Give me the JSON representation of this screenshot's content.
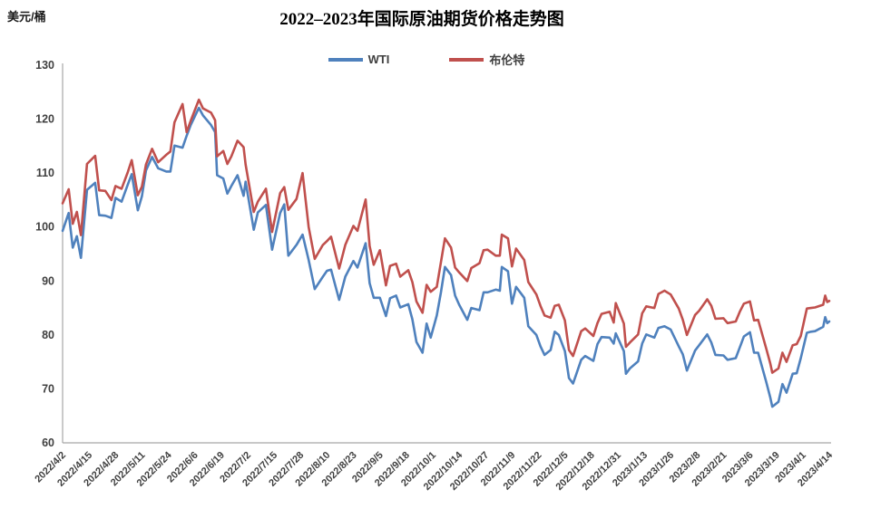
{
  "chart": {
    "title": "2022–2023年国际原油期货价格走势图",
    "unit_label": "美元/桶",
    "legend": [
      {
        "label": "WTI",
        "color": "#4F81BD"
      },
      {
        "label": "布伦特",
        "color": "#C0504D"
      }
    ],
    "axis_color": "#A6A6A6",
    "text_color": "#3F3F3F",
    "background": "#FFFFFF"
  },
  "chart_data": {
    "type": "line",
    "title": "2022–2023年国际原油期货价格走势图",
    "ylabel": "美元/桶",
    "xlabel": "",
    "ylim": [
      60,
      130
    ],
    "y_ticks": [
      60,
      70,
      80,
      90,
      100,
      110,
      120,
      130
    ],
    "grid": false,
    "legend_position": "top-center",
    "x_tick_labels": [
      "2022/4/2",
      "2022/4/15",
      "2022/4/28",
      "2022/5/11",
      "2022/5/24",
      "2022/6/6",
      "2022/6/19",
      "2022/7/2",
      "2022/7/15",
      "2022/7/28",
      "2022/8/10",
      "2022/8/23",
      "2022/9/5",
      "2022/9/18",
      "2022/10/1",
      "2022/10/14",
      "2022/10/27",
      "2022/11/9",
      "2022/11/22",
      "2022/12/5",
      "2022/12/18",
      "2022/12/31",
      "2023/1/13",
      "2023/1/26",
      "2023/2/8",
      "2023/2/21",
      "2023/3/6",
      "2023/3/19",
      "2023/4/1",
      "2023/4/14"
    ],
    "x_tick_days": [
      0,
      13,
      26,
      39,
      52,
      65,
      78,
      91,
      104,
      117,
      130,
      143,
      156,
      169,
      182,
      195,
      208,
      221,
      234,
      247,
      260,
      273,
      286,
      299,
      312,
      325,
      338,
      351,
      364,
      377
    ],
    "x_range_days": [
      0,
      377
    ],
    "x_days": [
      0,
      3,
      5,
      7,
      9,
      12,
      16,
      18,
      21,
      24,
      26,
      29,
      32,
      34,
      37,
      39,
      41,
      44,
      47,
      51,
      53,
      55,
      59,
      61,
      63,
      67,
      69,
      73,
      75,
      76,
      79,
      81,
      83,
      86,
      89,
      90,
      94,
      96,
      100,
      103,
      107,
      109,
      111,
      115,
      118,
      121,
      124,
      128,
      130,
      132,
      136,
      139,
      143,
      145,
      149,
      151,
      153,
      156,
      159,
      161,
      164,
      166,
      170,
      172,
      174,
      177,
      179,
      181,
      184,
      186,
      188,
      191,
      193,
      195,
      199,
      201,
      205,
      207,
      209,
      213,
      215,
      216,
      219,
      221,
      223,
      227,
      229,
      233,
      235,
      237,
      240,
      242,
      244,
      247,
      249,
      251,
      255,
      257,
      261,
      263,
      265,
      269,
      271,
      272,
      276,
      277,
      279,
      283,
      285,
      287,
      291,
      293,
      296,
      299,
      303,
      305,
      307,
      311,
      313,
      317,
      319,
      321,
      325,
      327,
      331,
      333,
      335,
      338,
      340,
      342,
      346,
      348,
      349,
      352,
      354,
      356,
      359,
      361,
      363,
      366,
      368,
      370,
      374,
      375,
      376,
      377
    ],
    "series": [
      {
        "name": "WTI",
        "color": "#4F81BD",
        "values": [
          99.3,
          102.6,
          96.2,
          98.3,
          94.3,
          106.9,
          108.2,
          102.2,
          102.1,
          101.7,
          105.4,
          104.7,
          107.8,
          109.8,
          103.1,
          105.7,
          110.5,
          113.0,
          110.9,
          110.3,
          110.3,
          115.1,
          114.7,
          116.9,
          118.9,
          122.1,
          120.7,
          118.9,
          117.6,
          109.6,
          109.0,
          106.2,
          107.6,
          109.6,
          105.8,
          108.4,
          99.5,
          102.7,
          104.1,
          95.8,
          102.6,
          104.2,
          94.7,
          96.7,
          98.6,
          93.9,
          88.5,
          90.8,
          91.9,
          92.1,
          86.5,
          90.8,
          93.7,
          92.5,
          97.0,
          89.6,
          86.9,
          86.9,
          83.5,
          86.8,
          87.3,
          85.1,
          85.7,
          82.9,
          78.7,
          76.7,
          82.1,
          79.5,
          83.6,
          87.8,
          92.6,
          91.1,
          87.3,
          85.6,
          82.8,
          85.0,
          84.6,
          87.9,
          87.9,
          88.4,
          88.2,
          92.6,
          91.8,
          85.8,
          88.9,
          86.9,
          81.6,
          80.0,
          77.9,
          76.3,
          77.2,
          80.6,
          80.0,
          77.0,
          72.0,
          71.0,
          75.4,
          76.1,
          75.2,
          78.3,
          79.6,
          79.5,
          78.4,
          80.3,
          77.0,
          72.8,
          73.8,
          75.1,
          78.4,
          80.1,
          79.5,
          81.3,
          81.6,
          81.0,
          77.9,
          76.4,
          73.4,
          77.1,
          78.1,
          80.1,
          78.6,
          76.3,
          76.2,
          75.4,
          75.7,
          77.7,
          79.7,
          80.5,
          76.7,
          76.7,
          71.3,
          68.4,
          66.7,
          67.6,
          70.9,
          69.3,
          72.8,
          72.9,
          75.7,
          80.4,
          80.6,
          80.7,
          81.5,
          83.3,
          82.2,
          82.5
        ]
      },
      {
        "name": "布伦特",
        "color": "#C0504D",
        "values": [
          104.4,
          107.0,
          100.6,
          102.8,
          98.5,
          111.7,
          113.2,
          106.8,
          106.7,
          105.0,
          107.6,
          107.1,
          110.1,
          112.4,
          105.9,
          107.5,
          111.6,
          114.5,
          112.0,
          113.4,
          114.0,
          119.4,
          122.8,
          117.6,
          119.7,
          123.6,
          122.0,
          121.2,
          119.8,
          113.1,
          114.1,
          111.7,
          113.1,
          116.0,
          114.8,
          111.6,
          102.8,
          104.7,
          107.1,
          99.1,
          106.3,
          107.4,
          103.2,
          105.2,
          110.0,
          100.0,
          94.1,
          96.7,
          97.4,
          98.2,
          92.3,
          96.7,
          100.2,
          99.3,
          105.1,
          96.5,
          93.0,
          95.7,
          89.2,
          92.8,
          93.2,
          90.8,
          92.0,
          89.8,
          86.2,
          84.1,
          89.3,
          88.0,
          88.9,
          93.4,
          97.9,
          96.2,
          92.5,
          91.6,
          90.0,
          92.4,
          93.3,
          95.7,
          95.8,
          94.7,
          94.7,
          98.6,
          97.9,
          92.7,
          96.0,
          93.9,
          89.8,
          87.5,
          85.4,
          83.6,
          83.2,
          85.4,
          85.6,
          82.7,
          77.2,
          76.1,
          80.7,
          81.2,
          79.8,
          82.2,
          83.9,
          84.3,
          82.3,
          85.9,
          82.1,
          77.8,
          78.6,
          80.1,
          84.0,
          85.3,
          85.0,
          87.6,
          88.2,
          87.5,
          84.9,
          82.8,
          80.0,
          83.7,
          84.5,
          86.6,
          85.4,
          83.0,
          83.1,
          82.2,
          82.5,
          84.3,
          85.8,
          86.2,
          82.7,
          82.8,
          77.5,
          74.7,
          73.0,
          73.8,
          76.7,
          75.0,
          78.1,
          78.3,
          79.8,
          84.9,
          85.0,
          85.1,
          85.6,
          87.3,
          86.1,
          86.3
        ]
      }
    ]
  }
}
